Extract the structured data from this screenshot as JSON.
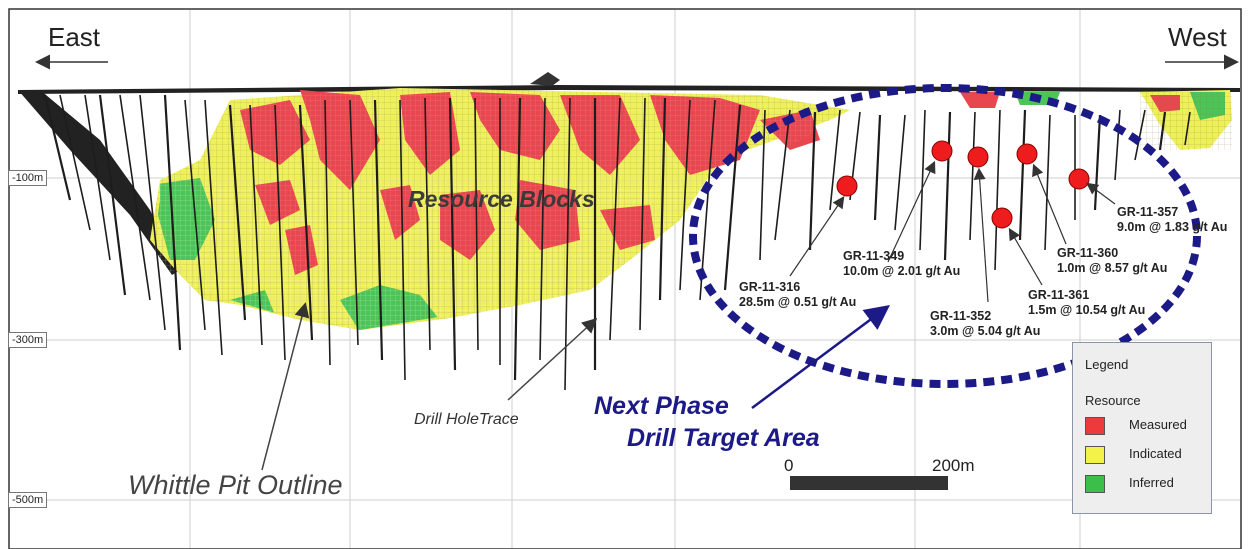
{
  "directions": {
    "east": "East",
    "west": "West"
  },
  "elevations": [
    "-100m",
    "-300m",
    "-500m"
  ],
  "labels": {
    "resource_blocks": "Resource Blocks",
    "drill_hole_trace": "Drill HoleTrace",
    "pit_outline": "Whittle Pit Outline",
    "target_line1": "Next Phase",
    "target_line2": "Drill Target Area"
  },
  "drill_holes": [
    {
      "id": "GR-11-316",
      "result": "28.5m @ 0.51 g/t Au"
    },
    {
      "id": "GR-11-349",
      "result": "10.0m @ 2.01 g/t Au"
    },
    {
      "id": "GR-11-352",
      "result": "3.0m @ 5.04 g/t Au"
    },
    {
      "id": "GR-11-361",
      "result": "1.5m @ 10.54 g/t Au"
    },
    {
      "id": "GR-11-360",
      "result": "1.0m @ 8.57 g/t Au"
    },
    {
      "id": "GR-11-357",
      "result": "9.0m @ 1.83 g/t Au"
    }
  ],
  "scale_bar": {
    "start": "0",
    "end": "200m"
  },
  "legend": {
    "title": "Legend",
    "subtitle": "Resource",
    "items": [
      {
        "label": "Measured",
        "color": "#ee3a3a"
      },
      {
        "label": "Indicated",
        "color": "#f2f24a"
      },
      {
        "label": "Inferred",
        "color": "#3cbf4a"
      }
    ]
  },
  "colors": {
    "measured": "#e8474f",
    "indicated": "#eef05a",
    "inferred": "#4cc457",
    "target_ring": "#1c1a86",
    "hole_marker": "#ee1c1c"
  }
}
